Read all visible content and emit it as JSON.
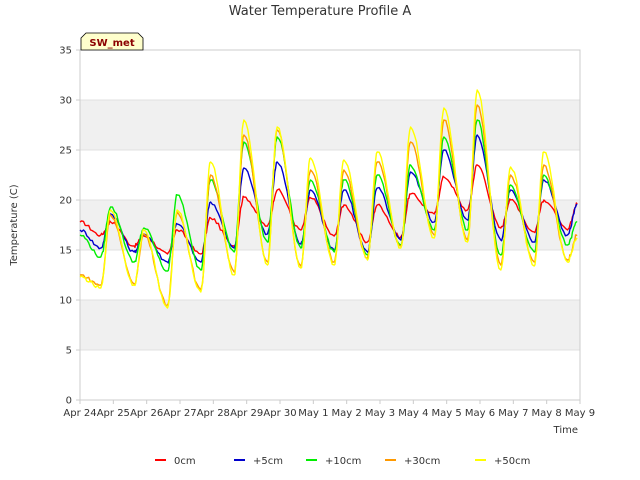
{
  "chart_data": {
    "type": "line",
    "title": "Water Temperature Profile A",
    "xlabel": "Time",
    "ylabel": "Temperature (C)",
    "site_label": "SW_met",
    "ylim": [
      0,
      35
    ],
    "yticks": [
      0,
      5,
      10,
      15,
      20,
      25,
      30,
      35
    ],
    "xlim": [
      "2024-04-24",
      "2024-05-09"
    ],
    "xticks": [
      "Apr 24",
      "Apr 25",
      "Apr 26",
      "Apr 27",
      "Apr 28",
      "Apr 29",
      "Apr 30",
      "May 1",
      "May 2",
      "May 3",
      "May 4",
      "May 5",
      "May 6",
      "May 7",
      "May 8",
      "May 9"
    ],
    "grid": true,
    "legend_position": "bottom",
    "colors": {
      "band": "#f0f0f0",
      "grid": "#e0e0e0",
      "axis": "#cccccc",
      "badge_fill": "#ffffcc",
      "badge_text": "#8b0000"
    },
    "series": [
      {
        "name": "0cm",
        "color": "#ff0000",
        "x": [
          "Apr 24 00:00",
          "Apr 24 15:00",
          "Apr 24 22:00",
          "Apr 25 15:00",
          "Apr 25 22:00",
          "Apr 26 15:00",
          "Apr 26 22:00",
          "Apr 27 15:00",
          "Apr 27 22:00",
          "Apr 28 15:00",
          "Apr 28 22:00",
          "Apr 29 15:00",
          "Apr 29 22:00",
          "Apr 30 15:00",
          "Apr 30 22:00",
          "May 1 15:00",
          "May 1 22:00",
          "May 2 15:00",
          "May 2 22:00",
          "May 3 15:00",
          "May 3 22:00",
          "May 4 15:00",
          "May 4 22:00",
          "May 5 15:00",
          "May 5 22:00",
          "May 6 15:00",
          "May 6 22:00",
          "May 7 15:00",
          "May 7 22:00",
          "May 8 15:00",
          "May 8 22:00"
        ],
        "y": [
          17.8,
          16.5,
          17.8,
          15.4,
          16.4,
          14.6,
          17.0,
          14.6,
          18.2,
          15.4,
          20.3,
          17.4,
          21.0,
          17.0,
          20.2,
          16.4,
          19.5,
          15.8,
          19.5,
          16.3,
          20.6,
          18.6,
          22.3,
          19.0,
          23.5,
          17.2,
          20.0,
          16.8,
          20.0,
          17.0,
          19.6
        ]
      },
      {
        "name": "+5cm",
        "color": "#0000cc",
        "x": [
          "Apr 24 00:00",
          "Apr 24 15:00",
          "Apr 24 22:00",
          "Apr 25 15:00",
          "Apr 25 22:00",
          "Apr 26 15:00",
          "Apr 26 22:00",
          "Apr 27 15:00",
          "Apr 27 22:00",
          "Apr 28 15:00",
          "Apr 28 22:00",
          "Apr 29 15:00",
          "Apr 29 22:00",
          "Apr 30 15:00",
          "Apr 30 22:00",
          "May 1 15:00",
          "May 1 22:00",
          "May 2 15:00",
          "May 2 22:00",
          "May 3 15:00",
          "May 3 22:00",
          "May 4 15:00",
          "May 4 22:00",
          "May 5 15:00",
          "May 5 22:00",
          "May 6 15:00",
          "May 6 22:00",
          "May 7 15:00",
          "May 7 22:00",
          "May 8 15:00",
          "May 8 22:00"
        ],
        "y": [
          17.0,
          15.2,
          18.6,
          14.8,
          16.6,
          13.8,
          17.6,
          13.8,
          19.8,
          15.2,
          23.2,
          16.6,
          23.8,
          15.6,
          21.0,
          15.0,
          21.0,
          14.8,
          21.2,
          16.0,
          22.8,
          17.8,
          25.0,
          18.0,
          26.5,
          16.0,
          21.0,
          15.8,
          22.0,
          16.5,
          19.5
        ]
      },
      {
        "name": "+10cm",
        "color": "#00ee00",
        "x": [
          "Apr 24 00:00",
          "Apr 24 15:00",
          "Apr 24 22:00",
          "Apr 25 15:00",
          "Apr 25 22:00",
          "Apr 26 15:00",
          "Apr 26 22:00",
          "Apr 27 15:00",
          "Apr 27 22:00",
          "Apr 28 15:00",
          "Apr 28 22:00",
          "Apr 29 15:00",
          "Apr 29 22:00",
          "Apr 30 15:00",
          "Apr 30 22:00",
          "May 1 15:00",
          "May 1 22:00",
          "May 2 15:00",
          "May 2 22:00",
          "May 3 15:00",
          "May 3 22:00",
          "May 4 15:00",
          "May 4 22:00",
          "May 5 15:00",
          "May 5 22:00",
          "May 6 15:00",
          "May 6 22:00",
          "May 7 15:00",
          "May 7 22:00",
          "May 8 15:00",
          "May 8 22:00"
        ],
        "y": [
          16.5,
          14.3,
          19.3,
          13.8,
          17.2,
          12.9,
          20.5,
          13.0,
          22.0,
          14.8,
          25.8,
          15.8,
          26.3,
          15.2,
          22.0,
          14.8,
          22.0,
          14.5,
          22.5,
          15.5,
          23.5,
          17.0,
          26.3,
          17.0,
          28.0,
          14.5,
          21.5,
          14.8,
          22.5,
          15.5,
          17.8
        ]
      },
      {
        "name": "+30cm",
        "color": "#ff9900",
        "x": [
          "Apr 24 00:00",
          "Apr 24 15:00",
          "Apr 24 22:00",
          "Apr 25 15:00",
          "Apr 25 22:00",
          "Apr 26 15:00",
          "Apr 26 22:00",
          "Apr 27 15:00",
          "Apr 27 22:00",
          "Apr 28 15:00",
          "Apr 28 22:00",
          "Apr 29 15:00",
          "Apr 29 22:00",
          "Apr 30 15:00",
          "Apr 30 22:00",
          "May 1 15:00",
          "May 1 22:00",
          "May 2 15:00",
          "May 2 22:00",
          "May 3 15:00",
          "May 3 22:00",
          "May 4 15:00",
          "May 4 22:00",
          "May 5 15:00",
          "May 5 22:00",
          "May 6 15:00",
          "May 6 22:00",
          "May 7 15:00",
          "May 7 22:00",
          "May 8 15:00",
          "May 8 22:00"
        ],
        "y": [
          12.5,
          11.5,
          18.5,
          11.6,
          16.6,
          9.5,
          18.8,
          11.0,
          22.5,
          12.8,
          26.5,
          13.8,
          27.0,
          13.4,
          23.0,
          13.8,
          23.0,
          14.2,
          23.8,
          15.4,
          25.8,
          16.5,
          28.0,
          16.0,
          29.5,
          13.5,
          22.5,
          13.8,
          23.5,
          14.0,
          16.5
        ]
      },
      {
        "name": "+50cm",
        "color": "#ffff00",
        "x": [
          "Apr 24 00:00",
          "Apr 24 15:00",
          "Apr 24 22:00",
          "Apr 25 15:00",
          "Apr 25 22:00",
          "Apr 26 15:00",
          "Apr 26 22:00",
          "Apr 27 15:00",
          "Apr 27 22:00",
          "Apr 28 15:00",
          "Apr 28 22:00",
          "Apr 29 15:00",
          "Apr 29 22:00",
          "Apr 30 15:00",
          "Apr 30 22:00",
          "May 1 15:00",
          "May 1 22:00",
          "May 2 15:00",
          "May 2 22:00",
          "May 3 15:00",
          "May 3 22:00",
          "May 4 15:00",
          "May 4 22:00",
          "May 5 15:00",
          "May 5 22:00",
          "May 6 15:00",
          "May 6 22:00",
          "May 7 15:00",
          "May 7 22:00",
          "May 8 15:00",
          "May 8 22:00"
        ],
        "y": [
          12.3,
          11.2,
          19.0,
          11.5,
          17.0,
          9.2,
          19.0,
          10.8,
          23.8,
          12.5,
          28.0,
          13.5,
          27.3,
          13.2,
          24.2,
          13.5,
          24.0,
          14.0,
          24.8,
          15.2,
          27.3,
          16.2,
          29.2,
          15.8,
          31.0,
          13.0,
          23.3,
          13.4,
          24.8,
          13.8,
          16.2
        ]
      }
    ]
  }
}
